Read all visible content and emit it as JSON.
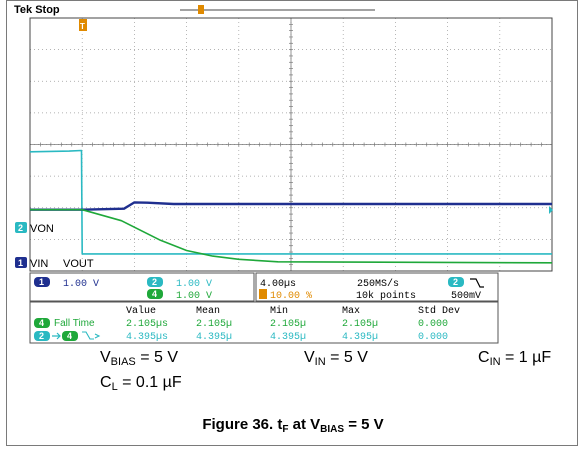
{
  "chart_data": {
    "type": "line",
    "title": "",
    "xlabel": "",
    "ylabel": "",
    "scope_status": "Tek Stop",
    "time_per_div": "4.00µs",
    "sample_rate": "250MS/s",
    "record_length": "10k points",
    "trigger_level": "500mV",
    "trigger_channel": "2",
    "trigger_position": "10.00 %",
    "grid": true,
    "x_range_div": [
      0,
      10
    ],
    "y_range_div": [
      0,
      8
    ],
    "x_unit": "µs",
    "y_unit": "V",
    "channels": [
      {
        "id": "1",
        "scale": "1.00 V",
        "color": "#1f2f8f"
      },
      {
        "id": "2",
        "scale": "1.00 V",
        "color": "#2ab9c2"
      },
      {
        "id": "4",
        "scale": "1.00 V",
        "color": "#1fa83a"
      }
    ],
    "trace_labels": {
      "von": "VON",
      "vin": "VIN",
      "vout": "VOUT",
      "von_ch": "2",
      "vin_ch": "1"
    },
    "series": [
      {
        "channel": "2",
        "x": [
          -4.0,
          -1.0,
          -0.05,
          0.0,
          36.0
        ],
        "y": [
          3.58,
          3.6,
          3.62,
          0.35,
          0.35
        ]
      },
      {
        "channel": "1",
        "x": [
          -4.0,
          0.0,
          3.2,
          4.0,
          5.0,
          7.0,
          36.0
        ],
        "y": [
          1.75,
          1.75,
          1.78,
          1.98,
          1.97,
          1.93,
          1.93
        ]
      },
      {
        "channel": "4",
        "x": [
          -4.0,
          0.0,
          3.0,
          6.0,
          8.0,
          10.0,
          12.0,
          15.0,
          36.0
        ],
        "y": [
          1.75,
          1.75,
          1.4,
          0.78,
          0.46,
          0.28,
          0.18,
          0.1,
          0.07
        ]
      }
    ],
    "measurements": {
      "headers": [
        "Value",
        "Mean",
        "Min",
        "Max",
        "Std Dev"
      ],
      "rows": [
        {
          "badge": "4",
          "label": "Fall Time",
          "values": [
            "2.105µs",
            "2.105µ",
            "2.105µ",
            "2.105µ",
            "0.000"
          ]
        },
        {
          "badge": "2",
          "badge2": "4",
          "label": "",
          "values": [
            "4.395µs",
            "4.395µ",
            "4.395µ",
            "4.395µ",
            "0.000"
          ]
        }
      ]
    }
  },
  "conditions": {
    "vbias": {
      "main": "V",
      "sub": "BIAS",
      "value": " = 5 V"
    },
    "vin": {
      "main": "V",
      "sub": "IN",
      "value": " = 5 V"
    },
    "cin": {
      "main": "C",
      "sub": "IN",
      "value": " = 1 µF"
    },
    "cl": {
      "main": "C",
      "sub": "L",
      "value": " = 0.1 µF"
    }
  },
  "caption": {
    "prefix": "Figure 36. t",
    "sub1": "F",
    "mid": " at V",
    "sub2": "BIAS",
    "suffix": " = 5 V"
  }
}
